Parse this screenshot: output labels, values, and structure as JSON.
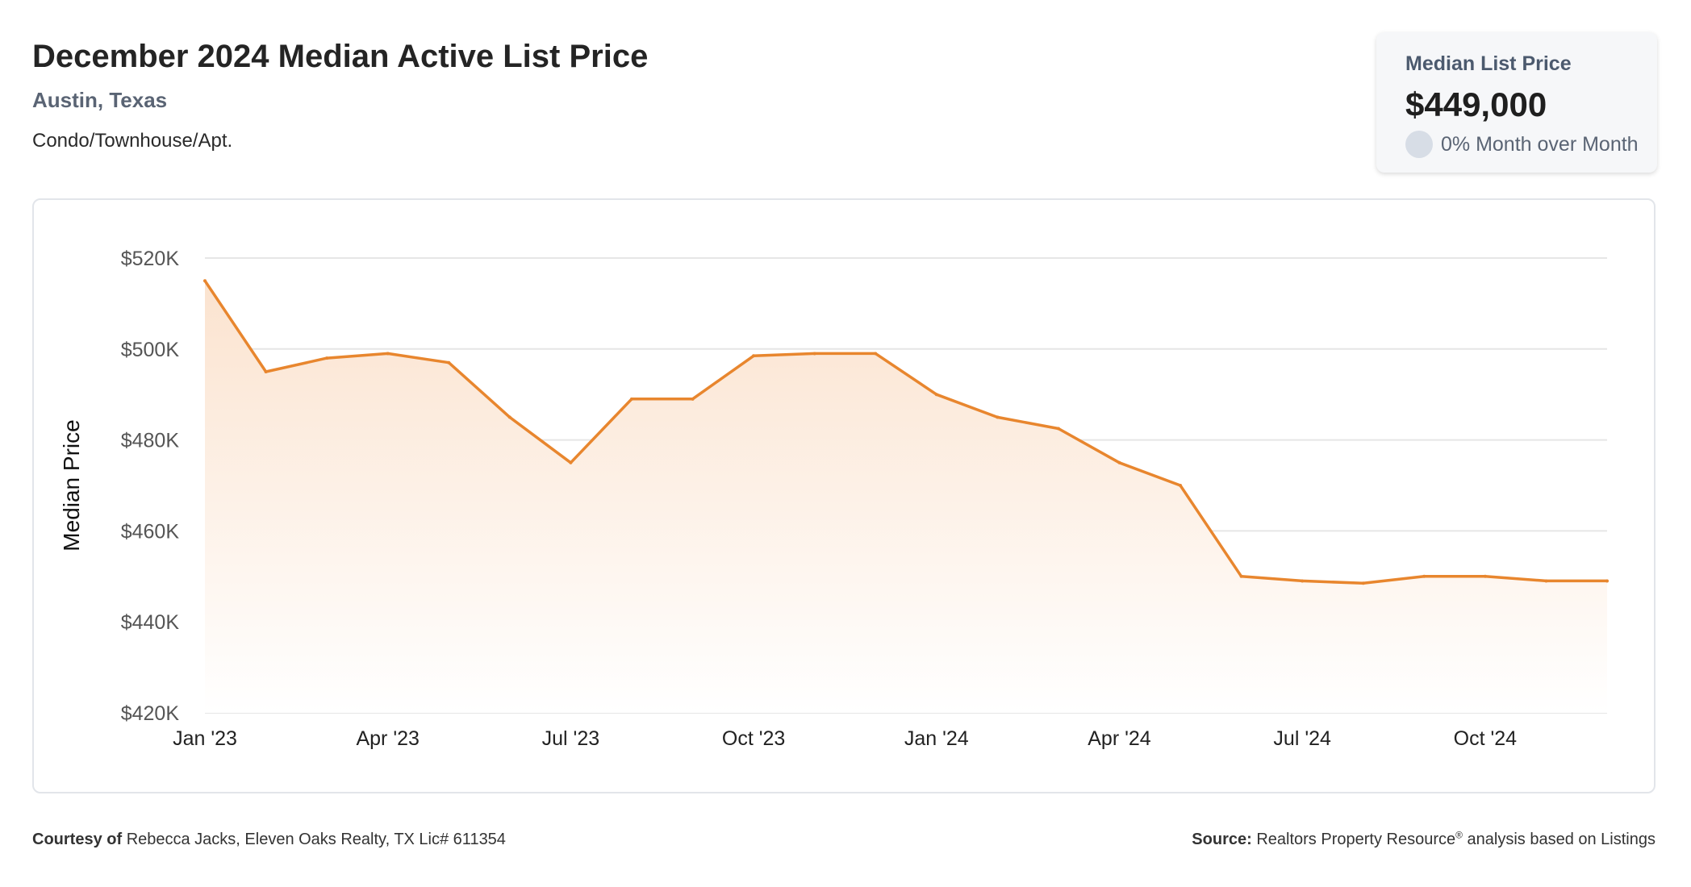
{
  "header": {
    "title": "December 2024 Median Active List Price",
    "location": "Austin, Texas",
    "property_type": "Condo/Townhouse/Apt."
  },
  "summary": {
    "label": "Median List Price",
    "value": "$449,000",
    "change": "0% Month over Month"
  },
  "footer": {
    "courtesy_label": "Courtesy of",
    "courtesy_text": "Rebecca Jacks, Eleven Oaks Realty, TX Lic# 611354",
    "source_label": "Source:",
    "source_name": "Realtors Property Resource",
    "source_mark": "®",
    "source_text": "analysis based on Listings"
  },
  "colors": {
    "line": "#e8862e",
    "fill_top": "#fbe3cf",
    "fill_bottom": "#ffffff",
    "grid": "#e6e6e6",
    "axis_text": "#555555"
  },
  "chart_data": {
    "type": "area",
    "title": "",
    "xlabel": "",
    "ylabel": "Median Price",
    "ylim": [
      420000,
      520000
    ],
    "yticks": [
      420000,
      440000,
      460000,
      480000,
      500000,
      520000
    ],
    "ytick_labels": [
      "$420K",
      "$440K",
      "$460K",
      "$480K",
      "$500K",
      "$520K"
    ],
    "xtick_labels": [
      "Jan '23",
      "Apr '23",
      "Jul '23",
      "Oct '23",
      "Jan '24",
      "Apr '24",
      "Jul '24",
      "Oct '24"
    ],
    "xtick_indices": [
      0,
      3,
      6,
      9,
      12,
      15,
      18,
      21
    ],
    "grid": true,
    "x": [
      "2023-01",
      "2023-02",
      "2023-03",
      "2023-04",
      "2023-05",
      "2023-06",
      "2023-07",
      "2023-08",
      "2023-09",
      "2023-10",
      "2023-11",
      "2023-12",
      "2024-01",
      "2024-02",
      "2024-03",
      "2024-04",
      "2024-05",
      "2024-06",
      "2024-07",
      "2024-08",
      "2024-09",
      "2024-10",
      "2024-11",
      "2024-12"
    ],
    "series": [
      {
        "values": [
          515000,
          495000,
          498000,
          499000,
          497000,
          485000,
          475000,
          489000,
          489000,
          498500,
          499000,
          499000,
          490000,
          485000,
          482500,
          475000,
          470000,
          450000,
          449000,
          448500,
          450000,
          450000,
          449000,
          449000
        ]
      }
    ]
  }
}
